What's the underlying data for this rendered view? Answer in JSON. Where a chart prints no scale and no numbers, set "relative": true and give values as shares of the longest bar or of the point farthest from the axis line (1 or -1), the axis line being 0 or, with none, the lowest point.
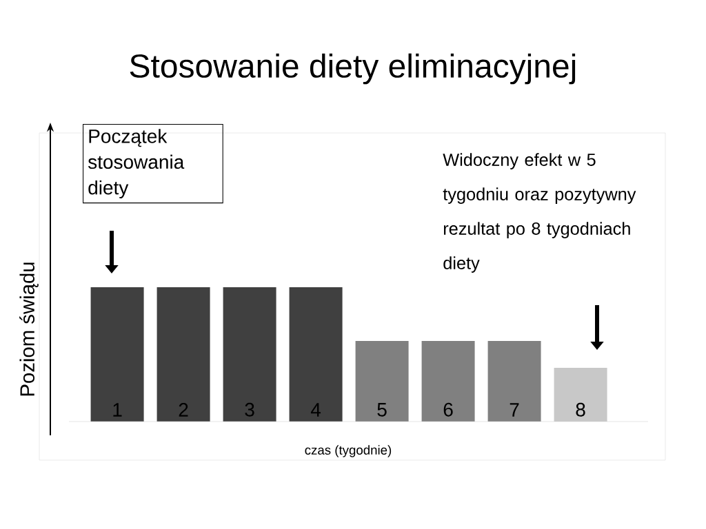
{
  "chart_data": {
    "type": "bar",
    "title": "Stosowanie diety eliminacyjnej",
    "xlabel": "czas (tygodnie)",
    "ylabel": "Poziom świądu",
    "categories": [
      "1",
      "2",
      "3",
      "4",
      "5",
      "6",
      "7",
      "8"
    ],
    "values": [
      1,
      1,
      1,
      1,
      0.6,
      0.6,
      0.6,
      0.4
    ],
    "colors": [
      "#404040",
      "#404040",
      "#404040",
      "#404040",
      "#808080",
      "#808080",
      "#808080",
      "#c8c8c8"
    ],
    "relative": true,
    "annotations": [
      "Początek stosowania diety",
      "Widoczny efekt w 5 tygodniu oraz pozytywny rezultat po 8 tygodniach diety"
    ]
  }
}
